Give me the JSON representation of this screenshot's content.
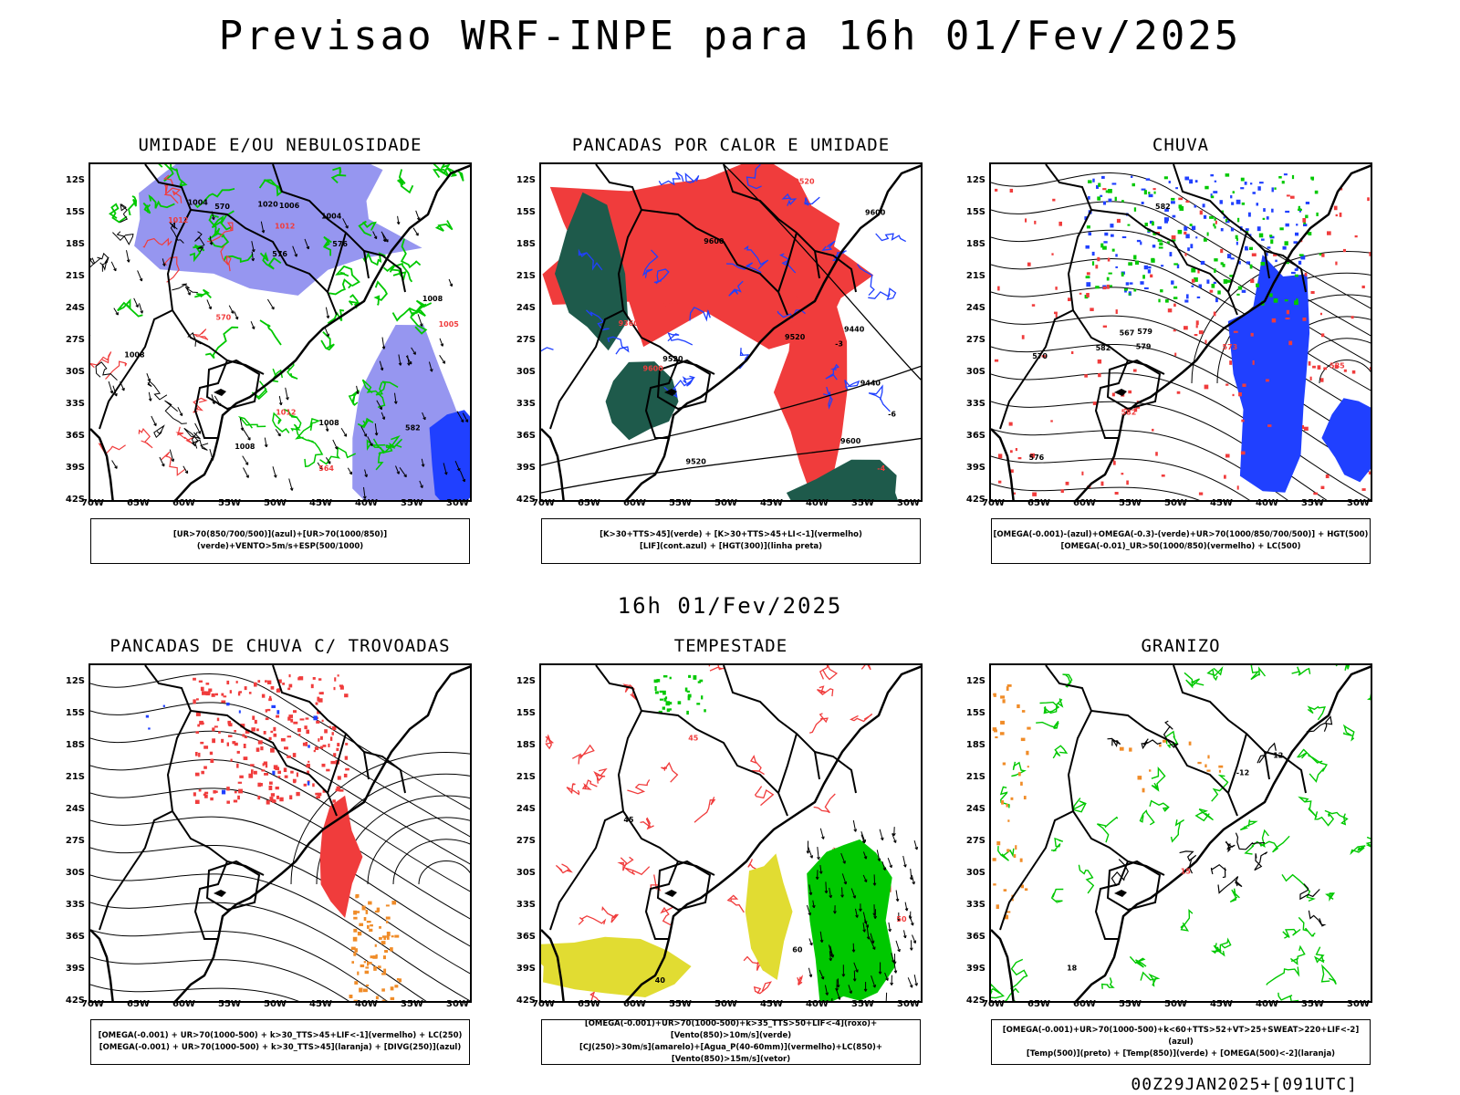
{
  "header": {
    "title": "Previsao WRF-INPE  para 16h 01/Fev/2025"
  },
  "mid_title": "16h 01/Fev/2025",
  "footer": "00Z29JAN2025+[091UTC]",
  "axes": {
    "lat_labels": [
      "12S",
      "15S",
      "18S",
      "21S",
      "24S",
      "27S",
      "30S",
      "33S",
      "36S",
      "39S",
      "42S"
    ],
    "lon_labels": [
      "70W",
      "65W",
      "60W",
      "55W",
      "50W",
      "45W",
      "40W",
      "35W",
      "30W"
    ]
  },
  "colors": {
    "red": "#f03c3c",
    "green": "#00c800",
    "blue": "#2040ff",
    "lightblue": "#9696f0",
    "darkgreen": "#1e5a4b",
    "yellow": "#e1dc32",
    "orange": "#f08c28"
  },
  "panels": [
    {
      "title": "UMIDADE E/OU NEBULOSIDADE",
      "legend": [
        "[UR>70(850/700/500)](azul)+[UR>70(1000/850)](verde)+VENTO>5m/s+ESP(500/1000)"
      ],
      "contour_labels": [
        "1008",
        "1005",
        "1004",
        "1006",
        "1012",
        "1008",
        "576",
        "570",
        "1008",
        "1004",
        "1012",
        "1008",
        "1020",
        "564",
        "582",
        "576",
        "1012",
        "570"
      ]
    },
    {
      "title": "PANCADAS POR CALOR E UMIDADE",
      "legend": [
        "[K>30+TTS>45](verde) + [K>30+TTS>45+LI<-1](vermelho)",
        "[LIF](cont.azul) + [HGT(300)](linha preta)"
      ],
      "contour_labels": [
        "9600",
        "9600",
        "9520",
        "9600",
        "9600",
        "9520",
        "9600",
        "9520",
        "9440",
        "9440",
        "9360",
        "9520",
        "-3",
        "-4",
        "-6"
      ]
    },
    {
      "title": "CHUVA",
      "legend": [
        "[OMEGA(-0.001)-(azul)+OMEGA(-0.3)-(verde)+UR>70(1000/850/700/500)] + HGT(500)",
        "[OMEGA(-0.01)_UR>50(1000/850)(vermelho) + LC(500)"
      ],
      "contour_labels": [
        "582",
        "582",
        "579",
        "576",
        "573",
        "570",
        "567",
        "585",
        "582",
        "579"
      ]
    },
    {
      "title": "PANCADAS DE CHUVA C/ TROVOADAS",
      "legend": [
        "[OMEGA(-0.001) + UR>70(1000-500) + k>30_TTS>45+LIF<-1](vermelho) + LC(250)",
        "[OMEGA(-0.001) + UR>70(1000-500) + k>30_TTS>45](laranja) + [DIVG(250)](azul)"
      ],
      "contour_labels": []
    },
    {
      "title": "TEMPESTADE",
      "legend": [
        "[OMEGA(-0.001)+UR>70(1000-500)+k>35_TTS>50+LIF<-4](roxo)+[Vento(850)>10m/s](verde)",
        "[CJ(250)>30m/s](amarelo)+[Agua_P(40-60mm)](vermelho)+LC(850)+[Vento(850)>15m/s](vetor)"
      ],
      "contour_labels": [
        "60",
        "50",
        "45",
        "40",
        "45"
      ]
    },
    {
      "title": "GRANIZO",
      "legend": [
        "[OMEGA(-0.001)+UR>70(1000-500)+k<60+TTS>52+VT>25+SWEAT>220+LIF<-2](azul)",
        "[Temp(500)](preto) + [Temp(850)](verde) + [OMEGA(500)<-2](laranja)"
      ],
      "contour_labels": [
        "-12",
        "15",
        "12",
        "18"
      ]
    }
  ]
}
